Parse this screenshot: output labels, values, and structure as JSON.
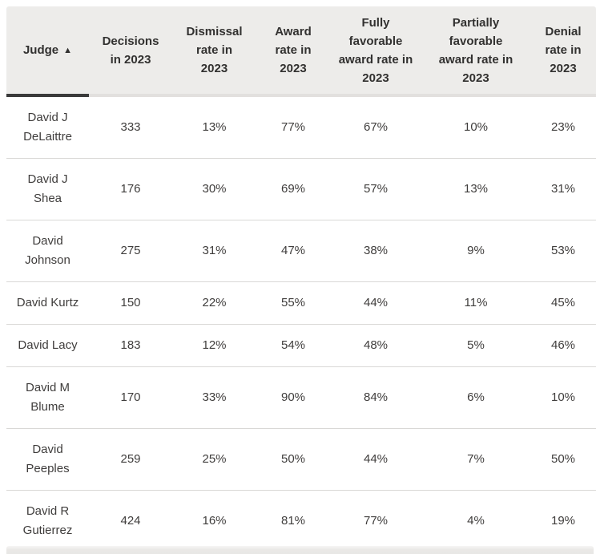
{
  "table": {
    "sort_icon": "▲",
    "columns": [
      {
        "label": "Judge",
        "sorted": true
      },
      {
        "label": "Decisions\nin 2023"
      },
      {
        "label": "Dismissal\nrate in\n2023"
      },
      {
        "label": "Award\nrate in\n2023"
      },
      {
        "label": "Fully\nfavorable\naward rate in\n2023"
      },
      {
        "label": "Partially\nfavorable\naward rate in\n2023"
      },
      {
        "label": "Denial\nrate in\n2023"
      }
    ],
    "rows": [
      [
        "David J\nDeLaittre",
        "333",
        "13%",
        "77%",
        "67%",
        "10%",
        "23%"
      ],
      [
        "David J\nShea",
        "176",
        "30%",
        "69%",
        "57%",
        "13%",
        "31%"
      ],
      [
        "David\nJohnson",
        "275",
        "31%",
        "47%",
        "38%",
        "9%",
        "53%"
      ],
      [
        "David Kurtz",
        "150",
        "22%",
        "55%",
        "44%",
        "11%",
        "45%"
      ],
      [
        "David Lacy",
        "183",
        "12%",
        "54%",
        "48%",
        "5%",
        "46%"
      ],
      [
        "David M\nBlume",
        "170",
        "33%",
        "90%",
        "84%",
        "6%",
        "10%"
      ],
      [
        "David\nPeeples",
        "259",
        "25%",
        "50%",
        "44%",
        "7%",
        "50%"
      ],
      [
        "David R\nGutierrez",
        "424",
        "16%",
        "81%",
        "77%",
        "4%",
        "19%"
      ]
    ]
  }
}
